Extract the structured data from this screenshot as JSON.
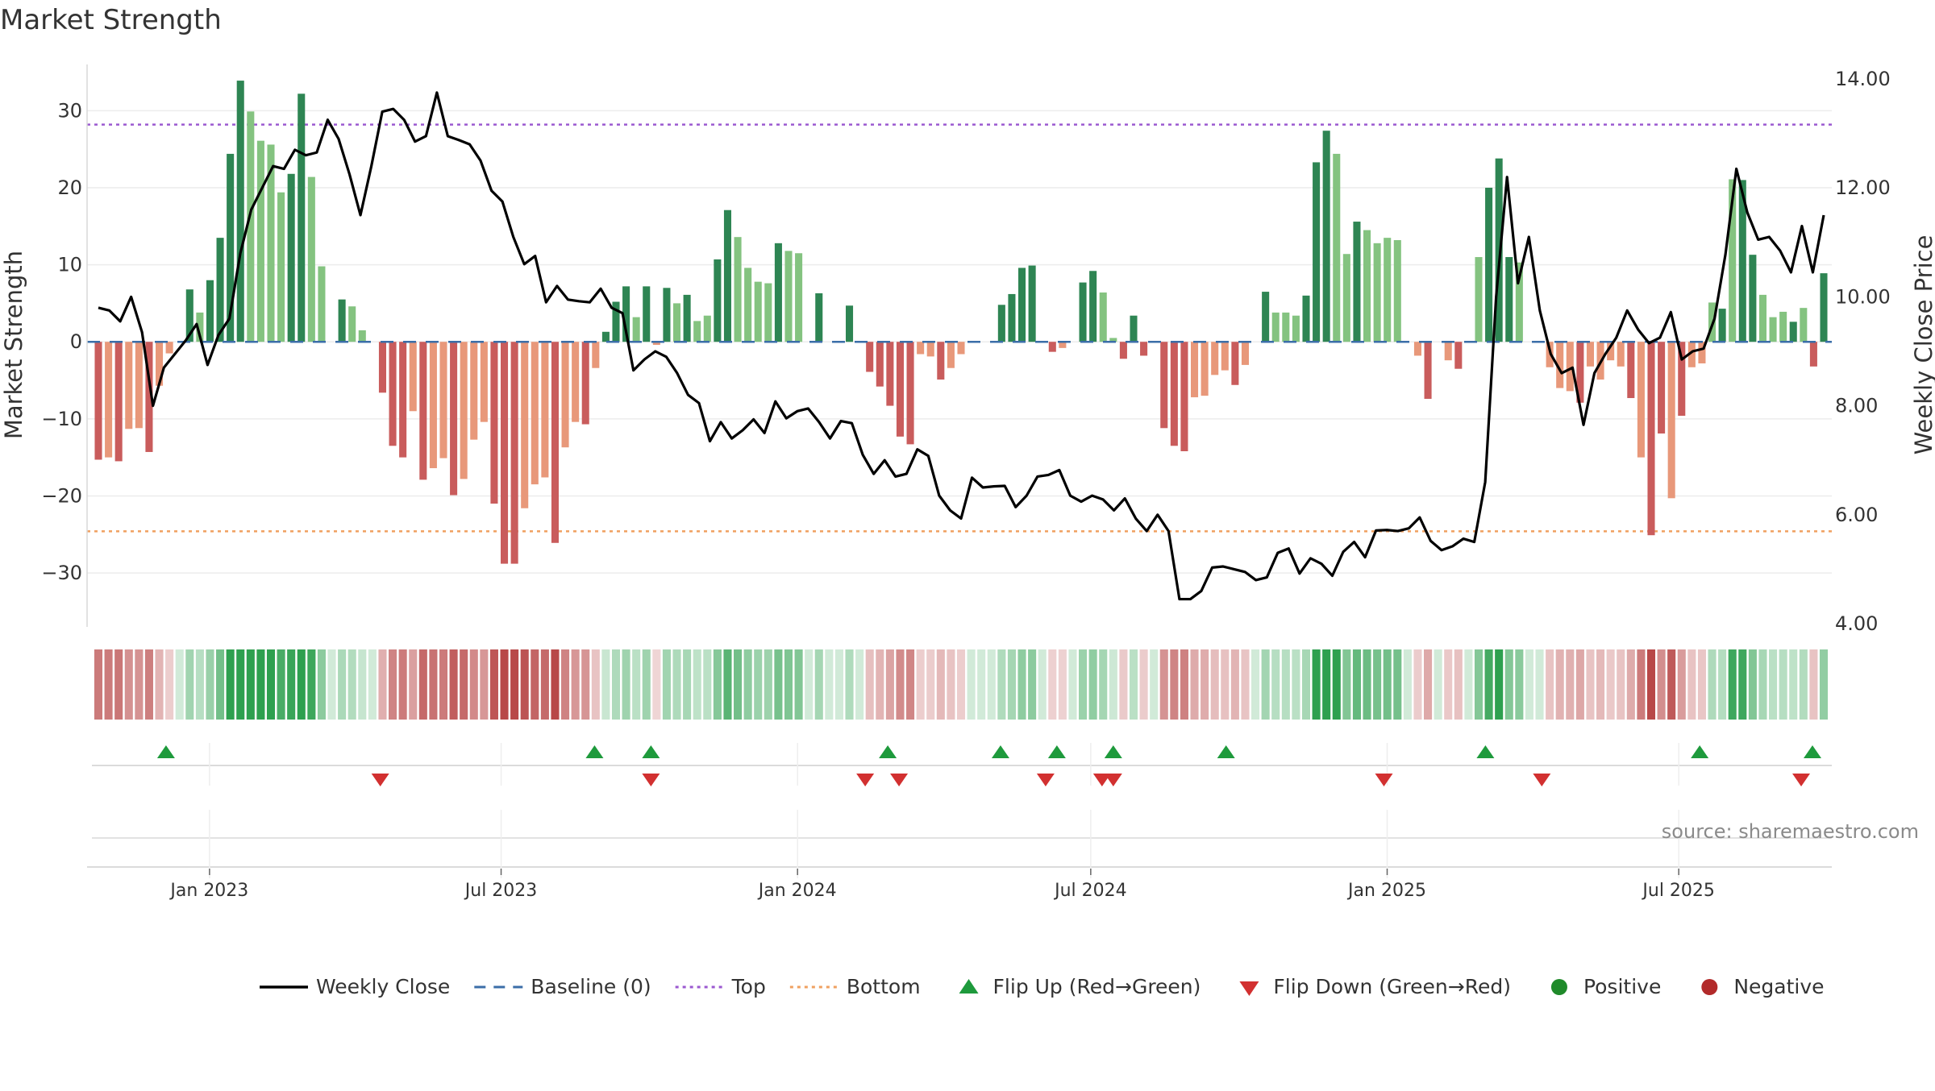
{
  "chart_data": {
    "type": "bar",
    "title": "Market Strength",
    "ylabel_left": "Market Strength",
    "ylabel_right": "Weekly Close Price",
    "source": "source: sharemaestro.com",
    "ylim_left": [
      -37,
      36
    ],
    "ylim_right": [
      4.0,
      14.0
    ],
    "yticks_left": [
      30,
      20,
      10,
      0,
      -10,
      -20,
      -30
    ],
    "ytick_labels_left": [
      "30",
      "20",
      "10",
      "0",
      "−10",
      "−20",
      "−30"
    ],
    "yticks_right": [
      14.0,
      12.0,
      10.0,
      8.0,
      6.0,
      4.0
    ],
    "ytick_labels_right": [
      "14.00",
      "12.00",
      "10.00",
      "8.00",
      "6.00",
      "4.00"
    ],
    "x_start": "2022-10-24",
    "x_end": "2025-09-29",
    "xticks": [
      "2023-01-01",
      "2023-07-01",
      "2024-01-01",
      "2024-07-01",
      "2025-01-01",
      "2025-07-01"
    ],
    "xtick_labels": [
      "Jan 2023",
      "Jul 2023",
      "Jan 2024",
      "Jul 2024",
      "Jan 2025",
      "Jul 2025"
    ],
    "top_line": 28.2,
    "bottom_line": -24.6,
    "grid": true,
    "strength_values": [
      -15.3,
      -15.0,
      -15.5,
      -11.3,
      -11.2,
      -14.3,
      -5.7,
      -1.5,
      0,
      6.8,
      3.8,
      8.0,
      13.5,
      24.4,
      33.9,
      29.9,
      26.1,
      25.6,
      19.4,
      21.8,
      32.2,
      21.4,
      9.8,
      0,
      5.5,
      4.6,
      1.5,
      0,
      -6.6,
      -13.5,
      -15.0,
      -9.0,
      -17.9,
      -16.4,
      -15.1,
      -19.9,
      -17.8,
      -12.7,
      -10.4,
      -21.0,
      -28.8,
      -28.8,
      -21.6,
      -18.5,
      -17.6,
      -26.1,
      -13.7,
      -10.4,
      -10.7,
      -3.4,
      1.3,
      5.2,
      7.2,
      3.2,
      7.2,
      -0.4,
      7.0,
      5.0,
      6.1,
      2.7,
      3.4,
      10.7,
      17.1,
      13.6,
      9.6,
      7.8,
      7.6,
      12.8,
      11.8,
      11.5,
      0,
      6.3,
      0,
      0,
      4.7,
      0,
      -3.9,
      -5.8,
      -8.3,
      -12.3,
      -13.3,
      -1.6,
      -1.9,
      -4.9,
      -3.4,
      -1.6,
      0,
      0,
      0,
      4.8,
      6.2,
      9.6,
      9.9,
      0,
      -1.3,
      -0.8,
      0,
      7.7,
      9.2,
      6.4,
      0.5,
      -2.2,
      3.4,
      -1.8,
      0,
      -11.2,
      -13.5,
      -14.2,
      -7.2,
      -7.0,
      -4.3,
      -3.7,
      -5.6,
      -3.0,
      0,
      6.5,
      3.8,
      3.8,
      3.4,
      6.0,
      23.3,
      27.4,
      24.4,
      11.4,
      15.6,
      14.5,
      12.8,
      13.5,
      13.2,
      0,
      -1.8,
      -7.4,
      0,
      -2.4,
      -3.5,
      0,
      11.0,
      20.0,
      23.8,
      11.0,
      10.3,
      0,
      0,
      -3.3,
      -6.0,
      -6.4,
      -7.9,
      -3.2,
      -4.9,
      -2.4,
      -3.2,
      -7.3,
      -15.0,
      -25.1,
      -11.9,
      -20.3,
      -9.6,
      -3.3,
      -2.8,
      5.1,
      4.3,
      21.1,
      21.0,
      11.3,
      6.1,
      3.2,
      3.9,
      2.6,
      4.4,
      -3.2,
      8.9
    ],
    "strength_shades": [
      "dark",
      "mid",
      "dark",
      "light",
      "light",
      "dark",
      "light",
      "light",
      "light",
      "dark",
      "light",
      "dark",
      "dark",
      "dark",
      "dark",
      "light",
      "light",
      "light",
      "light",
      "dark",
      "dark",
      "light",
      "light",
      "light",
      "dark",
      "light",
      "light",
      "light",
      "dark",
      "dark",
      "dark",
      "light",
      "dark",
      "light",
      "light",
      "dark",
      "light",
      "light",
      "light",
      "dark",
      "dark",
      "dark",
      "light",
      "light",
      "light",
      "dark",
      "light",
      "light",
      "dark",
      "light",
      "dark",
      "dark",
      "dark",
      "light",
      "dark",
      "light",
      "dark",
      "light",
      "dark",
      "light",
      "light",
      "dark",
      "dark",
      "light",
      "light",
      "light",
      "light",
      "dark",
      "light",
      "light",
      "light",
      "dark",
      "light",
      "light",
      "dark",
      "light",
      "dark",
      "dark",
      "dark",
      "dark",
      "dark",
      "light",
      "light",
      "dark",
      "light",
      "light",
      "light",
      "light",
      "light",
      "dark",
      "dark",
      "dark",
      "dark",
      "light",
      "dark",
      "light",
      "light",
      "dark",
      "dark",
      "light",
      "light",
      "dark",
      "dark",
      "dark",
      "light",
      "dark",
      "dark",
      "dark",
      "light",
      "light",
      "light",
      "light",
      "dark",
      "light",
      "light",
      "dark",
      "light",
      "light",
      "light",
      "dark",
      "dark",
      "dark",
      "light",
      "light",
      "dark",
      "light",
      "light",
      "light",
      "light",
      "light",
      "light",
      "dark",
      "dark",
      "light",
      "dark",
      "dark",
      "light",
      "dark",
      "dark",
      "dark",
      "light",
      "light",
      "light",
      "light",
      "light",
      "light",
      "dark",
      "light",
      "light",
      "light",
      "light",
      "dark",
      "light",
      "dark",
      "dark",
      "light",
      "dark",
      "light",
      "light",
      "light",
      "dark",
      "light",
      "dark",
      "dark",
      "light",
      "light",
      "light",
      "dark",
      "light",
      "dark",
      "dark",
      "dark"
    ],
    "series": [
      {
        "name": "Weekly Close",
        "values": [
          9.8,
          9.75,
          9.55,
          10.0,
          9.35,
          8.0,
          8.7,
          8.95,
          9.2,
          9.5,
          8.75,
          9.3,
          9.6,
          10.8,
          11.6,
          12.0,
          12.4,
          12.35,
          12.7,
          12.6,
          12.65,
          13.25,
          12.9,
          12.25,
          11.5,
          12.4,
          13.4,
          13.45,
          13.25,
          12.85,
          12.95,
          13.75,
          12.95,
          12.88,
          12.8,
          12.5,
          11.95,
          11.75,
          11.1,
          10.6,
          10.75,
          9.9,
          10.2,
          9.95,
          9.92,
          9.9,
          10.15,
          9.8,
          9.7,
          8.65,
          8.85,
          9.0,
          8.9,
          8.6,
          8.2,
          8.05,
          7.35,
          7.7,
          7.4,
          7.55,
          7.75,
          7.5,
          8.08,
          7.77,
          7.9,
          7.95,
          7.7,
          7.4,
          7.72,
          7.68,
          7.1,
          6.75,
          7.0,
          6.7,
          6.75,
          7.2,
          7.08,
          6.35,
          6.08,
          5.93,
          6.68,
          6.5,
          6.52,
          6.53,
          6.14,
          6.35,
          6.7,
          6.73,
          6.82,
          6.35,
          6.24,
          6.35,
          6.28,
          6.08,
          6.3,
          5.93,
          5.7,
          6.0,
          5.7,
          4.45,
          4.45,
          4.6,
          5.03,
          5.05,
          5.0,
          4.95,
          4.8,
          4.85,
          5.3,
          5.38,
          4.92,
          5.2,
          5.1,
          4.88,
          5.32,
          5.5,
          5.22,
          5.71,
          5.72,
          5.7,
          5.75,
          5.95,
          5.52,
          5.35,
          5.42,
          5.56,
          5.5,
          6.6,
          10.0,
          12.2,
          10.25,
          11.1,
          9.75,
          8.95,
          8.6,
          8.7,
          7.65,
          8.6,
          8.95,
          9.25,
          9.75,
          9.4,
          9.15,
          9.25,
          9.72,
          8.85,
          9.0,
          9.05,
          9.6,
          10.78,
          12.35,
          11.55,
          11.05,
          11.1,
          10.85,
          10.45,
          11.3,
          10.45,
          11.5
        ],
        "color": "#000000"
      }
    ],
    "flip_up": [
      "2022-12-05",
      "2023-08-28",
      "2023-10-02",
      "2024-02-26",
      "2024-05-06",
      "2024-06-10",
      "2024-07-15",
      "2024-09-23",
      "2025-03-03",
      "2025-07-14",
      "2025-09-22"
    ],
    "flip_down": [
      "2023-04-17",
      "2023-10-02",
      "2024-02-12",
      "2024-03-04",
      "2024-06-03",
      "2024-07-08",
      "2024-07-15",
      "2024-12-30",
      "2025-04-07",
      "2025-09-15"
    ],
    "legend_position": "bottom-center",
    "legend": [
      {
        "label": "Weekly Close",
        "kind": "solid-line",
        "color": "#000000"
      },
      {
        "label": "Baseline (0)",
        "kind": "dashed-line",
        "color": "#3b6ea8"
      },
      {
        "label": "Top",
        "kind": "dotted-line",
        "color": "#9b59d0"
      },
      {
        "label": "Bottom",
        "kind": "dotted-line",
        "color": "#f0a060"
      },
      {
        "label": "Flip Up (Red→Green)",
        "kind": "triangle-up",
        "color": "#1e9a3c"
      },
      {
        "label": "Flip Down (Green→Red)",
        "kind": "triangle-down",
        "color": "#d23030"
      },
      {
        "label": "Positive",
        "kind": "circle",
        "color": "#1f8a2a"
      },
      {
        "label": "Negative",
        "kind": "circle",
        "color": "#b22a2a"
      }
    ],
    "colors": {
      "pos_dark": "#2e8553",
      "pos_light": "#84c380",
      "neg_dark": "#c95c5c",
      "neg_light": "#e8987a",
      "baseline": "#3b6ea8",
      "top": "#9b59d0",
      "bottom": "#f0a060",
      "up": "#1e9a3c",
      "down": "#d23030"
    }
  }
}
